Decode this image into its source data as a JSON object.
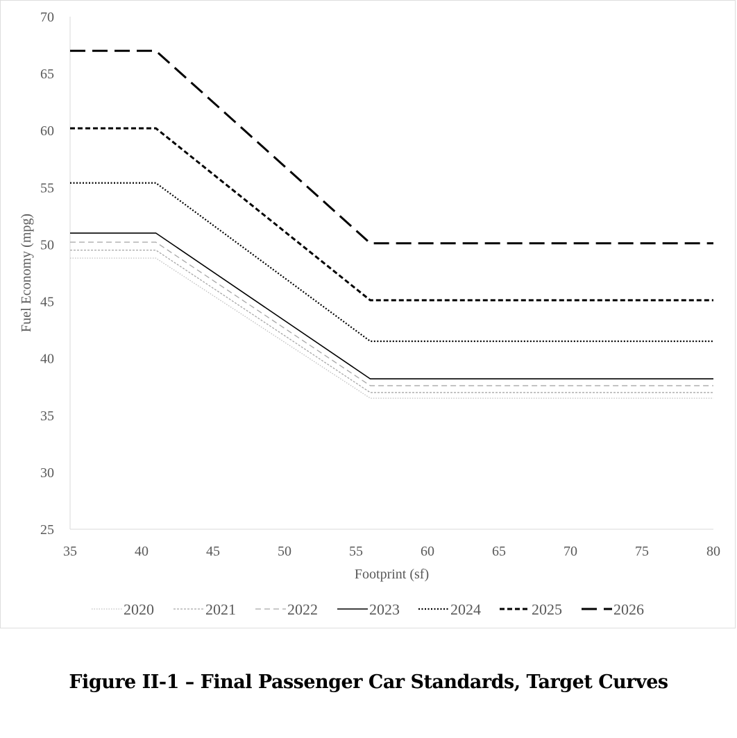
{
  "caption": "Figure II-1 – Final Passenger Car Standards, Target Curves",
  "chart_data": {
    "type": "line",
    "title": "",
    "xlabel": "Footprint (sf)",
    "ylabel": "Fuel Economy (mpg)",
    "xlim": [
      35,
      80
    ],
    "ylim": [
      25,
      70
    ],
    "xticks": [
      35,
      40,
      45,
      50,
      55,
      60,
      65,
      70,
      75,
      80
    ],
    "yticks": [
      25,
      30,
      35,
      40,
      45,
      50,
      55,
      60,
      65,
      70
    ],
    "grid": false,
    "legend_position": "bottom",
    "series": [
      {
        "name": "2020",
        "x": [
          35,
          41,
          56,
          80
        ],
        "y": [
          48.8,
          48.8,
          36.5,
          36.5
        ],
        "color": "#bfbfbf",
        "dash": "1.5 2",
        "width": 1.3
      },
      {
        "name": "2021",
        "x": [
          35,
          41,
          56,
          80
        ],
        "y": [
          49.5,
          49.5,
          37.0,
          37.0
        ],
        "color": "#a6a6a6",
        "dash": "3 2",
        "width": 1.3
      },
      {
        "name": "2022",
        "x": [
          35,
          41,
          56,
          80
        ],
        "y": [
          50.2,
          50.2,
          37.6,
          37.6
        ],
        "color": "#a6a6a6",
        "dash": "8 5",
        "width": 1.3
      },
      {
        "name": "2023",
        "x": [
          35,
          41,
          56,
          80
        ],
        "y": [
          51.0,
          51.0,
          38.2,
          38.2
        ],
        "color": "#000000",
        "dash": "",
        "width": 1.6
      },
      {
        "name": "2024",
        "x": [
          35,
          41,
          56,
          80
        ],
        "y": [
          55.4,
          55.4,
          41.5,
          41.5
        ],
        "color": "#000000",
        "dash": "2 2.5",
        "width": 2.2
      },
      {
        "name": "2025",
        "x": [
          35,
          41,
          56,
          80
        ],
        "y": [
          60.2,
          60.2,
          45.1,
          45.1
        ],
        "color": "#000000",
        "dash": "7 4",
        "width": 3
      },
      {
        "name": "2026",
        "x": [
          35,
          41,
          56,
          80
        ],
        "y": [
          67.0,
          67.0,
          50.1,
          50.1
        ],
        "color": "#000000",
        "dash": "22 10",
        "width": 3
      }
    ]
  }
}
